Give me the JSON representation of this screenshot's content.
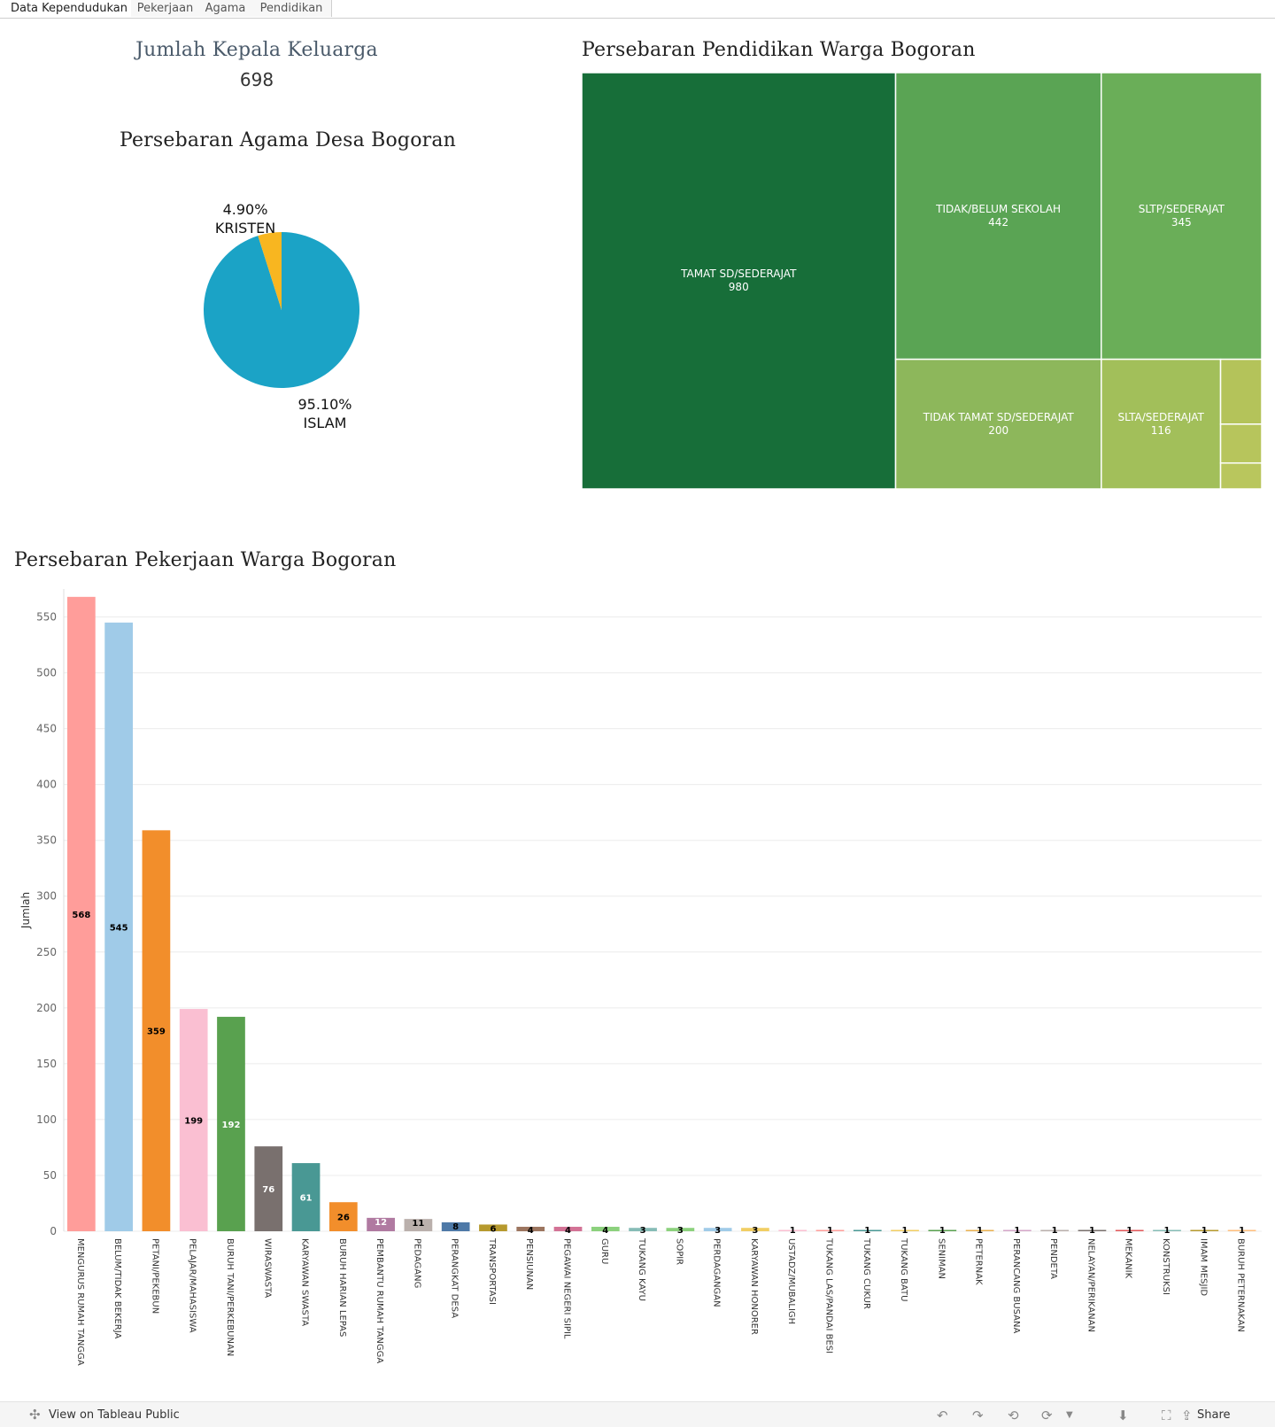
{
  "tabs": [
    "Data Kependudukan",
    "Pekerjaan",
    "Agama",
    "Pendidikan"
  ],
  "kepala_keluarga": {
    "title": "Jumlah Kepala Keluarga",
    "value": "698"
  },
  "agama": {
    "title": "Persebaran Agama Desa Bogoran",
    "kristen_pct": "4.90%",
    "kristen_label": "KRISTEN",
    "islam_pct": "95.10%",
    "islam_label": "ISLAM"
  },
  "pendidikan": {
    "title": "Persebaran Pendidikan Warga Bogoran"
  },
  "pekerjaan": {
    "title": "Persebaran Pekerjaan Warga Bogoran",
    "ylabel": "Jumlah"
  },
  "footer": {
    "view_link": "View on Tableau Public",
    "share": "Share"
  },
  "colors": {
    "islam": "#1ba3c6",
    "kristen": "#f8b620"
  },
  "chart_data": [
    {
      "type": "pie",
      "title": "Persebaran Agama Desa Bogoran",
      "slices": [
        {
          "label": "ISLAM",
          "value": 95.1,
          "color": "#1ba3c6"
        },
        {
          "label": "KRISTEN",
          "value": 4.9,
          "color": "#f8b620"
        }
      ]
    },
    {
      "type": "treemap",
      "title": "Persebaran Pendidikan Warga Bogoran",
      "items": [
        {
          "label": "TAMAT SD/SEDERAJAT",
          "value": 980,
          "color": "#176e39"
        },
        {
          "label": "TIDAK/BELUM SEKOLAH",
          "value": 442,
          "color": "#5aa454"
        },
        {
          "label": "SLTP/SEDERAJAT",
          "value": 345,
          "color": "#6aae58"
        },
        {
          "label": "TIDAK TAMAT SD/SEDERAJAT",
          "value": 200,
          "color": "#8db75b"
        },
        {
          "label": "SLTA/SEDERAJAT",
          "value": 116,
          "color": "#a2bf5a"
        },
        {
          "label": "",
          "value": 20,
          "color": "#b4c35a"
        },
        {
          "label": "",
          "value": 12,
          "color": "#b7c55c"
        },
        {
          "label": "",
          "value": 8,
          "color": "#b9c65d"
        }
      ]
    },
    {
      "type": "bar",
      "title": "Persebaran Pekerjaan Warga Bogoran",
      "ylabel": "Jumlah",
      "ylim": [
        0,
        575
      ],
      "yticks": [
        0,
        50,
        100,
        150,
        200,
        250,
        300,
        350,
        400,
        450,
        500,
        550
      ],
      "categories": [
        "MENGURUS RUMAH TANGGA",
        "BELUM/TIDAK BEKERJA",
        "PETANI/PEKEBUN",
        "PELAJAR/MAHASISWA",
        "BURUH TANI/PERKEBUNAN",
        "WIRASWASTA",
        "KARYAWAN SWASTA",
        "BURUH HARIAN LEPAS",
        "PEMBANTU RUMAH TANGGA",
        "PEDAGANG",
        "PERANGKAT DESA",
        "TRANSPORTASI",
        "PENSIUNAN",
        "PEGAWAI NEGERI SIPIL",
        "GURU",
        "TUKANG KAYU",
        "SOPIR",
        "PERDAGANGAN",
        "KARYAWAN HONORER",
        "USTADZ/MUBALIGH",
        "TUKANG LAS/PANDAI BESI",
        "TUKANG CUKUR",
        "TUKANG BATU",
        "SENIMAN",
        "PETERNAK",
        "PERANCANG BUSANA",
        "PENDETA",
        "NELAYAN/PERIKANAN",
        "MEKANIK",
        "KONSTRUKSI",
        "IMAM MESJID",
        "BURUH PETERNAKAN"
      ],
      "values": [
        568,
        545,
        359,
        199,
        192,
        76,
        61,
        26,
        12,
        11,
        8,
        6,
        4,
        4,
        4,
        3,
        3,
        3,
        3,
        1,
        1,
        1,
        1,
        1,
        1,
        1,
        1,
        1,
        1,
        1,
        1,
        1
      ],
      "colors": [
        "#ff9d9a",
        "#a0cbe8",
        "#f28e2b",
        "#fabfd2",
        "#59a14f",
        "#79706e",
        "#499894",
        "#f28e2b",
        "#b07aa1",
        "#bab0ac",
        "#4e79a7",
        "#b6992d",
        "#9c755f",
        "#d37295",
        "#8cd17d",
        "#86bcb6",
        "#8cd17d",
        "#a0cbe8",
        "#f1ce63",
        "#fabfd2",
        "#ff9d9a",
        "#499894",
        "#f1ce63",
        "#59a14f",
        "#e8b04f",
        "#d4a6c8",
        "#bab0ac",
        "#79706e",
        "#e15759",
        "#86bcb6",
        "#b6992d",
        "#ffbe7d"
      ],
      "label_colors": [
        "#000",
        "#000",
        "#000",
        "#000",
        "#fff",
        "#fff",
        "#fff",
        "#000",
        "#fff",
        "#000",
        "#000",
        "#000",
        "#000",
        "#000",
        "#000",
        "#000",
        "#000",
        "#000",
        "#000",
        "#000",
        "#000",
        "#000",
        "#000",
        "#000",
        "#000",
        "#000",
        "#000",
        "#000",
        "#000",
        "#000",
        "#000",
        "#000"
      ]
    }
  ]
}
